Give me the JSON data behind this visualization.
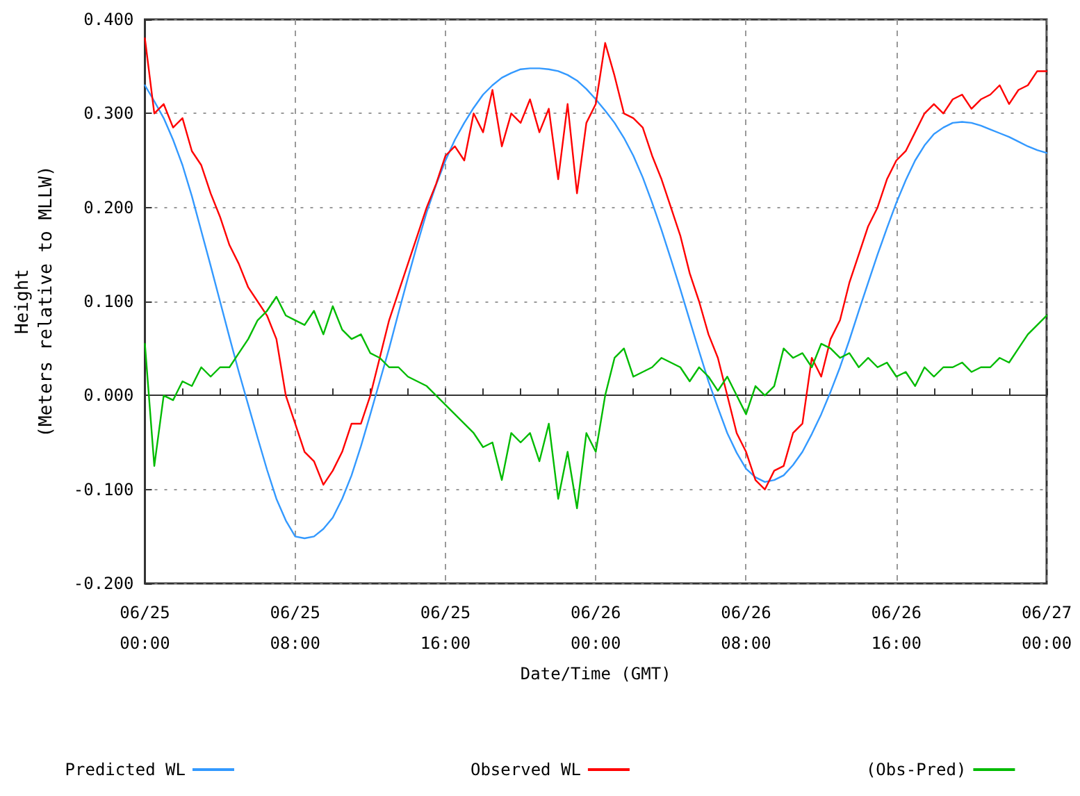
{
  "chart_data": {
    "type": "line",
    "xlabel": "Date/Time (GMT)",
    "ylabel": "Height\n(Meters relative to MLLW)",
    "categories": [
      "06/25\n00:00",
      null,
      null,
      null,
      null,
      null,
      null,
      null,
      null,
      null,
      null,
      null,
      null,
      null,
      null,
      null,
      "06/25\n08:00",
      null,
      null,
      null,
      null,
      null,
      null,
      null,
      null,
      null,
      null,
      null,
      null,
      null,
      null,
      null,
      "06/25\n16:00",
      null,
      null,
      null,
      null,
      null,
      null,
      null,
      null,
      null,
      null,
      null,
      null,
      null,
      null,
      null,
      "06/26\n00:00",
      null,
      null,
      null,
      null,
      null,
      null,
      null,
      null,
      null,
      null,
      null,
      null,
      null,
      null,
      null,
      "06/26\n08:00",
      null,
      null,
      null,
      null,
      null,
      null,
      null,
      null,
      null,
      null,
      null,
      null,
      null,
      null,
      null,
      "06/26\n16:00",
      null,
      null,
      null,
      null,
      null,
      null,
      null,
      null,
      null,
      null,
      null,
      null,
      null,
      null,
      null,
      "06/27\n00:00"
    ],
    "series": [
      {
        "name": "Predicted WL",
        "color": "#3399ff",
        "values": [
          0.33,
          0.313,
          0.295,
          0.272,
          0.245,
          0.212,
          0.175,
          0.138,
          0.1,
          0.062,
          0.025,
          -0.01,
          -0.045,
          -0.079,
          -0.11,
          -0.133,
          -0.15,
          -0.152,
          -0.15,
          -0.142,
          -0.13,
          -0.11,
          -0.085,
          -0.054,
          -0.02,
          0.015,
          0.05,
          0.088,
          0.125,
          0.161,
          0.195,
          0.224,
          0.25,
          0.272,
          0.29,
          0.306,
          0.32,
          0.33,
          0.338,
          0.343,
          0.347,
          0.348,
          0.348,
          0.347,
          0.345,
          0.341,
          0.335,
          0.326,
          0.315,
          0.303,
          0.29,
          0.274,
          0.255,
          0.232,
          0.205,
          0.176,
          0.145,
          0.113,
          0.08,
          0.047,
          0.015,
          -0.013,
          -0.04,
          -0.061,
          -0.078,
          -0.087,
          -0.092,
          -0.09,
          -0.085,
          -0.074,
          -0.06,
          -0.041,
          -0.02,
          0.004,
          0.03,
          0.059,
          0.09,
          0.12,
          0.15,
          0.178,
          0.205,
          0.229,
          0.25,
          0.266,
          0.278,
          0.285,
          0.29,
          0.291,
          0.29,
          0.287,
          0.283,
          0.279,
          0.275,
          0.27,
          0.265,
          0.261,
          0.258
        ]
      },
      {
        "name": "Observed WL",
        "color": "#ff0000",
        "values": [
          0.38,
          0.3,
          0.31,
          0.285,
          0.295,
          0.26,
          0.245,
          0.215,
          0.19,
          0.16,
          0.14,
          0.115,
          0.1,
          0.085,
          0.06,
          0.0,
          -0.03,
          -0.06,
          -0.07,
          -0.095,
          -0.08,
          -0.06,
          -0.03,
          -0.03,
          0.0,
          0.04,
          0.08,
          0.11,
          0.14,
          0.17,
          0.2,
          0.225,
          0.255,
          0.265,
          0.25,
          0.3,
          0.28,
          0.325,
          0.265,
          0.3,
          0.29,
          0.315,
          0.28,
          0.305,
          0.23,
          0.31,
          0.215,
          0.29,
          0.31,
          0.375,
          0.34,
          0.3,
          0.295,
          0.285,
          0.255,
          0.23,
          0.2,
          0.17,
          0.13,
          0.1,
          0.065,
          0.04,
          0.0,
          -0.04,
          -0.06,
          -0.09,
          -0.1,
          -0.08,
          -0.075,
          -0.04,
          -0.03,
          0.04,
          0.02,
          0.06,
          0.08,
          0.12,
          0.15,
          0.18,
          0.2,
          0.23,
          0.25,
          0.26,
          0.28,
          0.3,
          0.31,
          0.3,
          0.315,
          0.32,
          0.305,
          0.315,
          0.32,
          0.33,
          0.31,
          0.325,
          0.33,
          0.345,
          0.345
        ]
      },
      {
        "name": "(Obs-Pred)",
        "color": "#00bb00",
        "values": [
          0.055,
          -0.075,
          0.0,
          -0.005,
          0.015,
          0.01,
          0.03,
          0.02,
          0.03,
          0.03,
          0.045,
          0.06,
          0.08,
          0.09,
          0.105,
          0.085,
          0.08,
          0.075,
          0.09,
          0.065,
          0.095,
          0.07,
          0.06,
          0.065,
          0.045,
          0.04,
          0.03,
          0.03,
          0.02,
          0.015,
          0.01,
          0.0,
          -0.01,
          -0.02,
          -0.03,
          -0.04,
          -0.055,
          -0.05,
          -0.09,
          -0.04,
          -0.05,
          -0.04,
          -0.07,
          -0.03,
          -0.11,
          -0.06,
          -0.12,
          -0.04,
          -0.06,
          0.0,
          0.04,
          0.05,
          0.02,
          0.025,
          0.03,
          0.04,
          0.035,
          0.03,
          0.015,
          0.03,
          0.02,
          0.005,
          0.02,
          0.0,
          -0.02,
          0.01,
          0.0,
          0.01,
          0.05,
          0.04,
          0.045,
          0.03,
          0.055,
          0.05,
          0.04,
          0.045,
          0.03,
          0.04,
          0.03,
          0.035,
          0.02,
          0.025,
          0.01,
          0.03,
          0.02,
          0.03,
          0.03,
          0.035,
          0.025,
          0.03,
          0.03,
          0.04,
          0.035,
          0.05,
          0.065,
          0.075,
          0.085
        ]
      }
    ],
    "ylim": [
      -0.2,
      0.4
    ],
    "yticks": [
      {
        "value": -0.2,
        "label": "-0.200"
      },
      {
        "value": -0.1,
        "label": "-0.100"
      },
      {
        "value": 0,
        "label": "0.000"
      },
      {
        "value": 0.1,
        "label": "0.100"
      },
      {
        "value": 0.2,
        "label": "0.200"
      },
      {
        "value": 0.3,
        "label": "0.300"
      },
      {
        "value": 0.4,
        "label": "0.400"
      }
    ],
    "grid": true,
    "legend": "bottom",
    "marker": "none",
    "line_style": "solid"
  }
}
